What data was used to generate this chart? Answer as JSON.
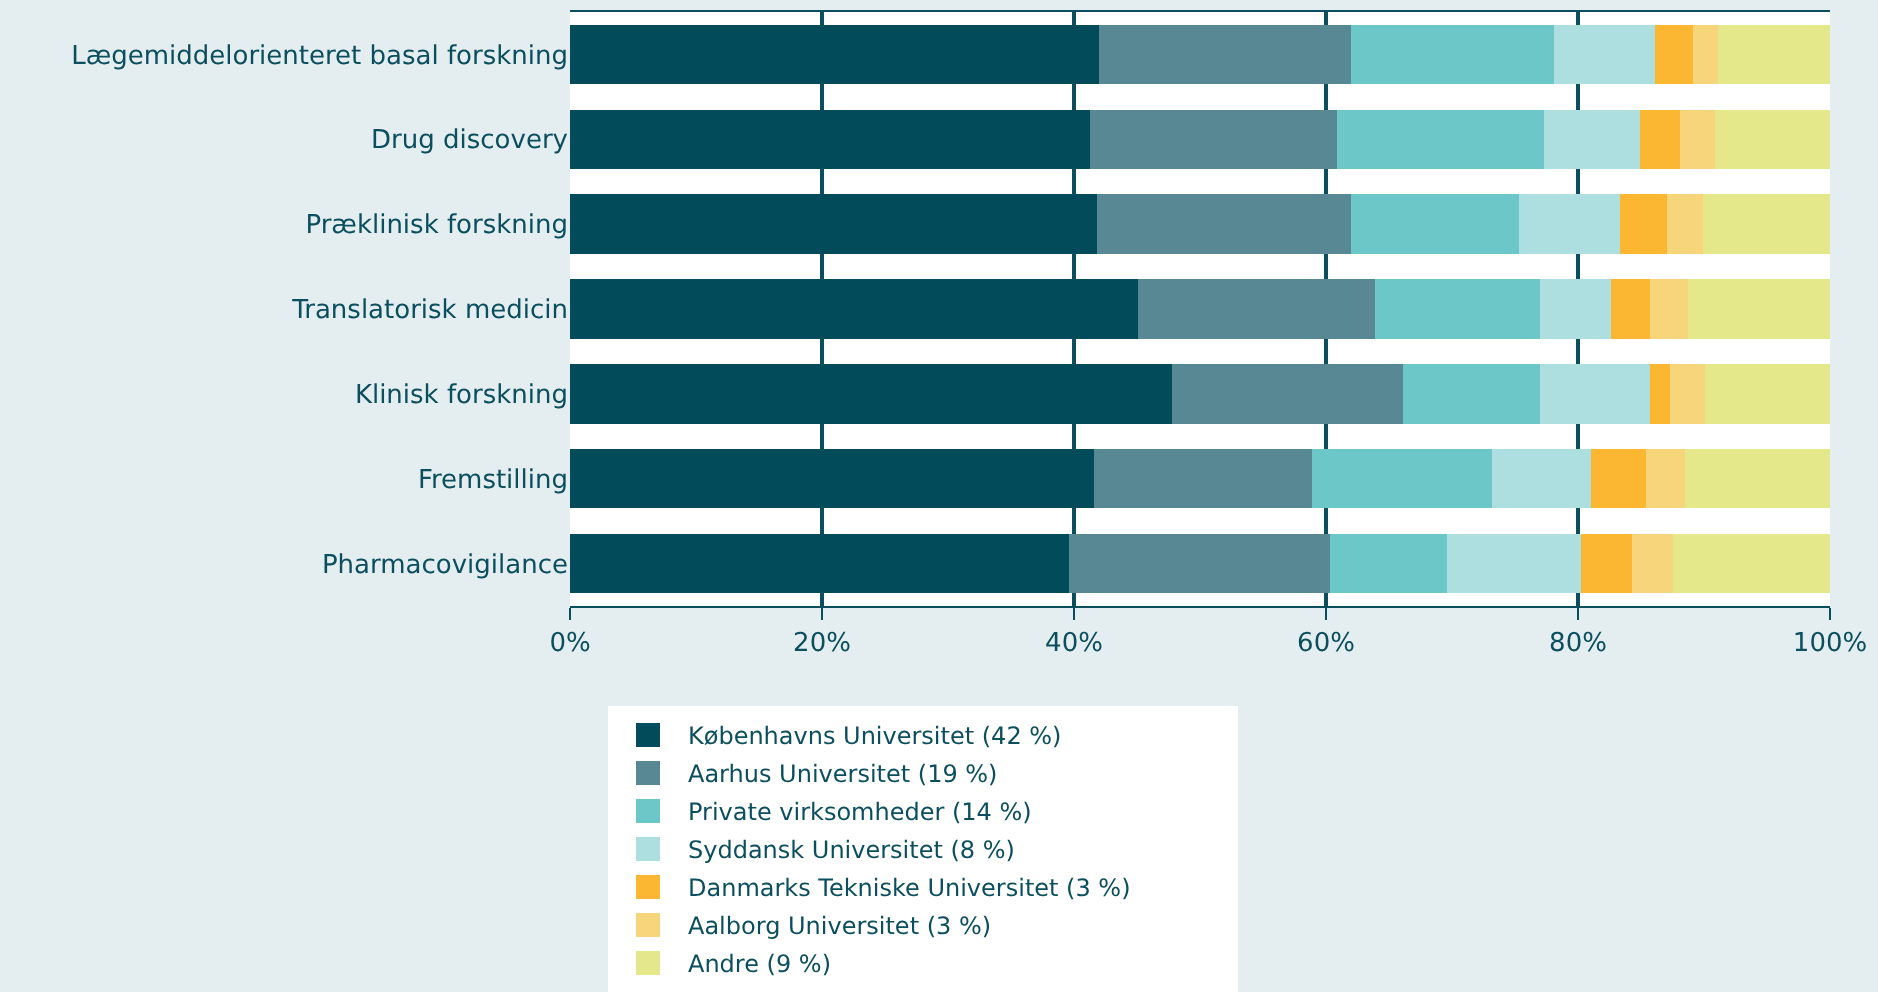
{
  "chart_data": {
    "type": "bar",
    "orientation": "horizontal",
    "stacked": true,
    "categories": [
      "Lægemiddelorienteret basal forskning",
      "Drug discovery",
      "Præklinisk forskning",
      "Translatorisk medicin",
      "Klinisk forskning",
      "Fremstilling",
      "Pharmacovigilance"
    ],
    "series": [
      {
        "name": "Københavns Universitet (42 %)",
        "color": "#024b5a",
        "values": [
          42,
          41.3,
          41.8,
          45.1,
          47.8,
          41.6,
          39.6
        ]
      },
      {
        "name": "Aarhus Universitet (19 %)",
        "color": "#578894",
        "values": [
          20,
          19.6,
          20.2,
          18.8,
          18.3,
          17.3,
          20.7
        ]
      },
      {
        "name": "Private virksomheder (14 %)",
        "color": "#6cc8c8",
        "values": [
          16.1,
          16.4,
          13.3,
          13.1,
          10.9,
          14.3,
          9.3
        ]
      },
      {
        "name": "Syddansk Universitet (8 %)",
        "color": "#aedfe0",
        "values": [
          8,
          7.6,
          8,
          5.6,
          8.7,
          7.8,
          10.6
        ]
      },
      {
        "name": "Danmarks Tekniske Universitet (3 %)",
        "color": "#fbb632",
        "values": [
          3,
          3.2,
          3.8,
          3.1,
          1.6,
          4.4,
          4.1
        ]
      },
      {
        "name": "Aalborg Universitet (3 %)",
        "color": "#f7d57a",
        "values": [
          2,
          2.8,
          2.8,
          3,
          2.8,
          3.1,
          3.2
        ]
      },
      {
        "name": "Andre (9 %)",
        "color": "#e5e88a",
        "values": [
          8.9,
          9.1,
          10.1,
          11.3,
          9.9,
          11.5,
          12.5
        ]
      }
    ],
    "xlim": [
      0,
      100
    ],
    "xticks": [
      {
        "value": 0,
        "label": "0%"
      },
      {
        "value": 20,
        "label": "20%"
      },
      {
        "value": 40,
        "label": "40%"
      },
      {
        "value": 60,
        "label": "60%"
      },
      {
        "value": 80,
        "label": "80%"
      },
      {
        "value": 100,
        "label": "100%"
      }
    ],
    "grid": "x",
    "legend": "bottom"
  }
}
